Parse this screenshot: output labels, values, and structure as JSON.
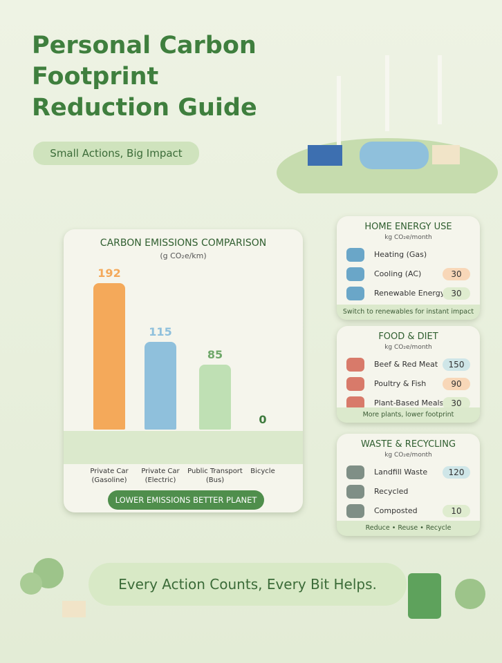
{
  "header": {
    "title": "Personal Carbon Footprint Reduction Guide",
    "subtitle": "Small Actions, Big Impact"
  },
  "chart_data": {
    "type": "bar",
    "title": "CARBON EMISSIONS COMPARISON",
    "subtitle": "(g CO₂e/km)",
    "categories": [
      "Private Car (Gasoline)",
      "Private Car (Electric)",
      "Public Transport (Bus)",
      "Bicycle"
    ],
    "values": [
      192,
      115,
      85,
      0
    ],
    "colors": [
      "#f4a95a",
      "#8fc0dc",
      "#bfe0b4",
      "#4f9a52"
    ],
    "footer": "LOWER EMISSIONS BETTER PLANET"
  },
  "panels": [
    {
      "title": "HOME ENERGY USE",
      "unit": "kg CO₂e/month",
      "items": [
        {
          "label": "Heating (Gas)"
        },
        {
          "label": "Cooling (AC)",
          "value": 30
        },
        {
          "label": "Renewable Energy",
          "value": 30
        }
      ],
      "note": "Switch to renewables for instant impact"
    },
    {
      "title": "FOOD & DIET",
      "unit": "kg CO₂e/month",
      "items": [
        {
          "label": "Beef & Red Meat",
          "value": 150
        },
        {
          "label": "Poultry & Fish",
          "value": 90
        },
        {
          "label": "Plant-Based Meals",
          "value": 30
        }
      ],
      "note": "More plants, lower footprint"
    },
    {
      "title": "WASTE & RECYCLING",
      "unit": "kg CO₂e/month",
      "items": [
        {
          "label": "Landfill Waste",
          "value": 120
        },
        {
          "label": "Recycled"
        },
        {
          "label": "Composted",
          "value": 10
        }
      ],
      "note": "Reduce • Reuse • Recycle"
    }
  ],
  "banner": "Every Action Counts, Every Bit Helps."
}
